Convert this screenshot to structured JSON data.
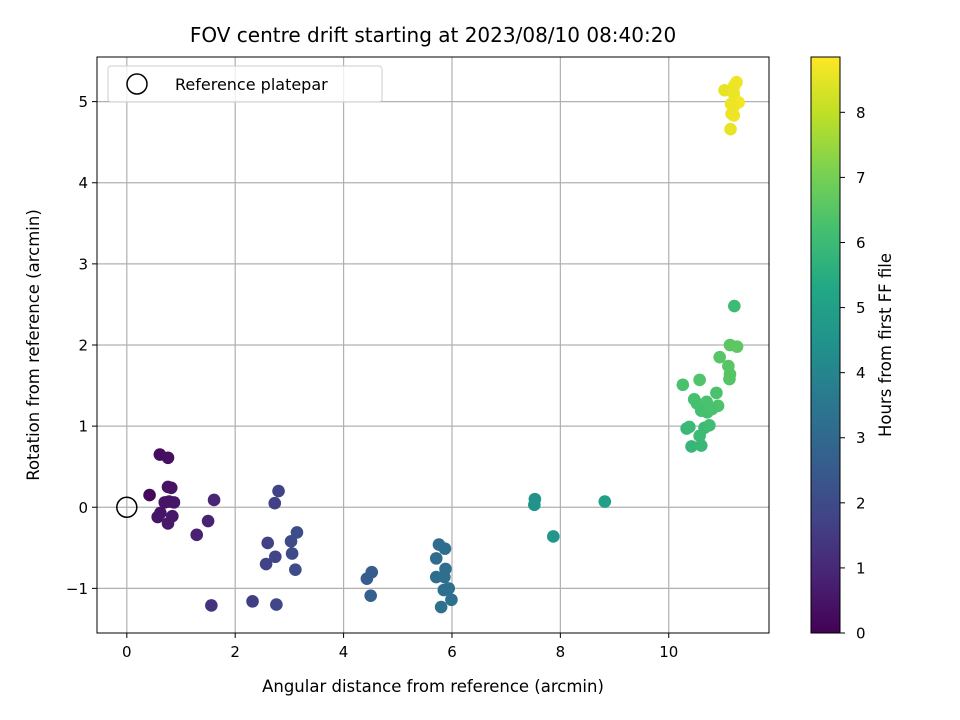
{
  "chart_data": {
    "type": "scatter",
    "title": "FOV centre drift starting at 2023/08/10 08:40:20",
    "xlabel": "Angular distance from reference (arcmin)",
    "ylabel": "Rotation from reference (arcmin)",
    "xlim": [
      -0.55,
      11.85
    ],
    "ylim": [
      -1.55,
      5.55
    ],
    "xticks": [
      0,
      2,
      4,
      6,
      8,
      10
    ],
    "xtick_labels": [
      "0",
      "2",
      "4",
      "6",
      "8",
      "10"
    ],
    "yticks": [
      -1,
      0,
      1,
      2,
      3,
      4,
      5
    ],
    "ytick_labels": [
      "−1",
      "0",
      "1",
      "2",
      "3",
      "4",
      "5"
    ],
    "grid": true,
    "legend": {
      "placement": "top-left",
      "entries": [
        "Reference platepar"
      ]
    },
    "reference_point": {
      "x": 0,
      "y": 0,
      "label": "Reference platepar"
    },
    "colorbar": {
      "label": "Hours from first FF file",
      "colormap": "viridis",
      "range": [
        0,
        8.85
      ],
      "ticks": [
        0,
        1,
        2,
        3,
        4,
        5,
        6,
        7,
        8
      ],
      "tick_labels": [
        "0",
        "1",
        "2",
        "3",
        "4",
        "5",
        "6",
        "7",
        "8"
      ]
    },
    "points": [
      {
        "x": 0.61,
        "y": 0.65,
        "c": 0.3
      },
      {
        "x": 0.76,
        "y": 0.61,
        "c": 0.35
      },
      {
        "x": 0.42,
        "y": 0.15,
        "c": 0.2
      },
      {
        "x": 0.76,
        "y": 0.25,
        "c": 0.4
      },
      {
        "x": 0.82,
        "y": 0.24,
        "c": 0.45
      },
      {
        "x": 0.7,
        "y": 0.06,
        "c": 0.5
      },
      {
        "x": 0.78,
        "y": 0.07,
        "c": 0.5
      },
      {
        "x": 0.87,
        "y": 0.06,
        "c": 0.55
      },
      {
        "x": 0.62,
        "y": -0.07,
        "c": 0.45
      },
      {
        "x": 0.57,
        "y": -0.12,
        "c": 0.5
      },
      {
        "x": 0.84,
        "y": -0.11,
        "c": 0.55
      },
      {
        "x": 0.76,
        "y": -0.2,
        "c": 0.6
      },
      {
        "x": 1.29,
        "y": -0.34,
        "c": 0.8
      },
      {
        "x": 1.5,
        "y": -0.17,
        "c": 0.85
      },
      {
        "x": 1.61,
        "y": 0.09,
        "c": 0.9
      },
      {
        "x": 1.56,
        "y": -1.21,
        "c": 1.3
      },
      {
        "x": 2.32,
        "y": -1.16,
        "c": 1.6
      },
      {
        "x": 2.6,
        "y": -0.44,
        "c": 1.7
      },
      {
        "x": 2.57,
        "y": -0.7,
        "c": 1.75
      },
      {
        "x": 2.74,
        "y": -0.61,
        "c": 1.8
      },
      {
        "x": 2.73,
        "y": 0.05,
        "c": 1.7
      },
      {
        "x": 2.8,
        "y": 0.2,
        "c": 1.75
      },
      {
        "x": 2.76,
        "y": -1.2,
        "c": 1.85
      },
      {
        "x": 3.03,
        "y": -0.42,
        "c": 2.0
      },
      {
        "x": 3.05,
        "y": -0.57,
        "c": 2.0
      },
      {
        "x": 3.14,
        "y": -0.31,
        "c": 2.05
      },
      {
        "x": 3.11,
        "y": -0.77,
        "c": 2.05
      },
      {
        "x": 4.52,
        "y": -0.8,
        "c": 2.6
      },
      {
        "x": 4.43,
        "y": -0.88,
        "c": 2.6
      },
      {
        "x": 4.5,
        "y": -1.09,
        "c": 2.65
      },
      {
        "x": 5.76,
        "y": -0.46,
        "c": 3.1
      },
      {
        "x": 5.87,
        "y": -0.51,
        "c": 3.15
      },
      {
        "x": 5.71,
        "y": -0.63,
        "c": 3.1
      },
      {
        "x": 5.88,
        "y": -0.76,
        "c": 3.2
      },
      {
        "x": 5.71,
        "y": -0.86,
        "c": 3.15
      },
      {
        "x": 5.86,
        "y": -0.86,
        "c": 3.2
      },
      {
        "x": 5.94,
        "y": -1.0,
        "c": 3.25
      },
      {
        "x": 5.85,
        "y": -1.02,
        "c": 3.2
      },
      {
        "x": 5.99,
        "y": -1.14,
        "c": 3.3
      },
      {
        "x": 5.8,
        "y": -1.23,
        "c": 3.25
      },
      {
        "x": 7.53,
        "y": 0.1,
        "c": 4.5
      },
      {
        "x": 7.52,
        "y": 0.03,
        "c": 4.5
      },
      {
        "x": 7.87,
        "y": -0.36,
        "c": 4.6
      },
      {
        "x": 8.82,
        "y": 0.07,
        "c": 5.0
      },
      {
        "x": 10.26,
        "y": 1.51,
        "c": 6.3
      },
      {
        "x": 10.57,
        "y": 1.57,
        "c": 6.4
      },
      {
        "x": 10.94,
        "y": 1.85,
        "c": 6.5
      },
      {
        "x": 11.13,
        "y": 2.0,
        "c": 6.55
      },
      {
        "x": 11.26,
        "y": 1.98,
        "c": 6.6
      },
      {
        "x": 11.21,
        "y": 2.48,
        "c": 6.0
      },
      {
        "x": 11.1,
        "y": 1.74,
        "c": 6.5
      },
      {
        "x": 11.13,
        "y": 1.64,
        "c": 6.5
      },
      {
        "x": 11.12,
        "y": 1.58,
        "c": 6.45
      },
      {
        "x": 10.88,
        "y": 1.41,
        "c": 6.3
      },
      {
        "x": 10.47,
        "y": 1.33,
        "c": 6.2
      },
      {
        "x": 10.52,
        "y": 1.28,
        "c": 6.25
      },
      {
        "x": 10.7,
        "y": 1.3,
        "c": 6.3
      },
      {
        "x": 10.91,
        "y": 1.25,
        "c": 6.35
      },
      {
        "x": 10.6,
        "y": 1.19,
        "c": 6.2
      },
      {
        "x": 10.71,
        "y": 1.17,
        "c": 6.25
      },
      {
        "x": 10.8,
        "y": 1.21,
        "c": 6.3
      },
      {
        "x": 10.33,
        "y": 0.97,
        "c": 5.9
      },
      {
        "x": 10.38,
        "y": 0.99,
        "c": 5.95
      },
      {
        "x": 10.66,
        "y": 0.98,
        "c": 6.05
      },
      {
        "x": 10.75,
        "y": 1.01,
        "c": 6.1
      },
      {
        "x": 10.57,
        "y": 0.88,
        "c": 6.0
      },
      {
        "x": 10.42,
        "y": 0.75,
        "c": 5.85
      },
      {
        "x": 10.6,
        "y": 0.76,
        "c": 5.9
      },
      {
        "x": 11.03,
        "y": 5.14,
        "c": 8.55
      },
      {
        "x": 11.21,
        "y": 5.2,
        "c": 8.6
      },
      {
        "x": 11.25,
        "y": 5.24,
        "c": 8.65
      },
      {
        "x": 11.2,
        "y": 5.1,
        "c": 8.6
      },
      {
        "x": 11.29,
        "y": 4.99,
        "c": 8.7
      },
      {
        "x": 11.15,
        "y": 4.97,
        "c": 8.6
      },
      {
        "x": 11.19,
        "y": 4.93,
        "c": 8.65
      },
      {
        "x": 11.16,
        "y": 4.85,
        "c": 8.6
      },
      {
        "x": 11.2,
        "y": 4.83,
        "c": 8.65
      },
      {
        "x": 11.14,
        "y": 4.66,
        "c": 8.55
      }
    ]
  }
}
